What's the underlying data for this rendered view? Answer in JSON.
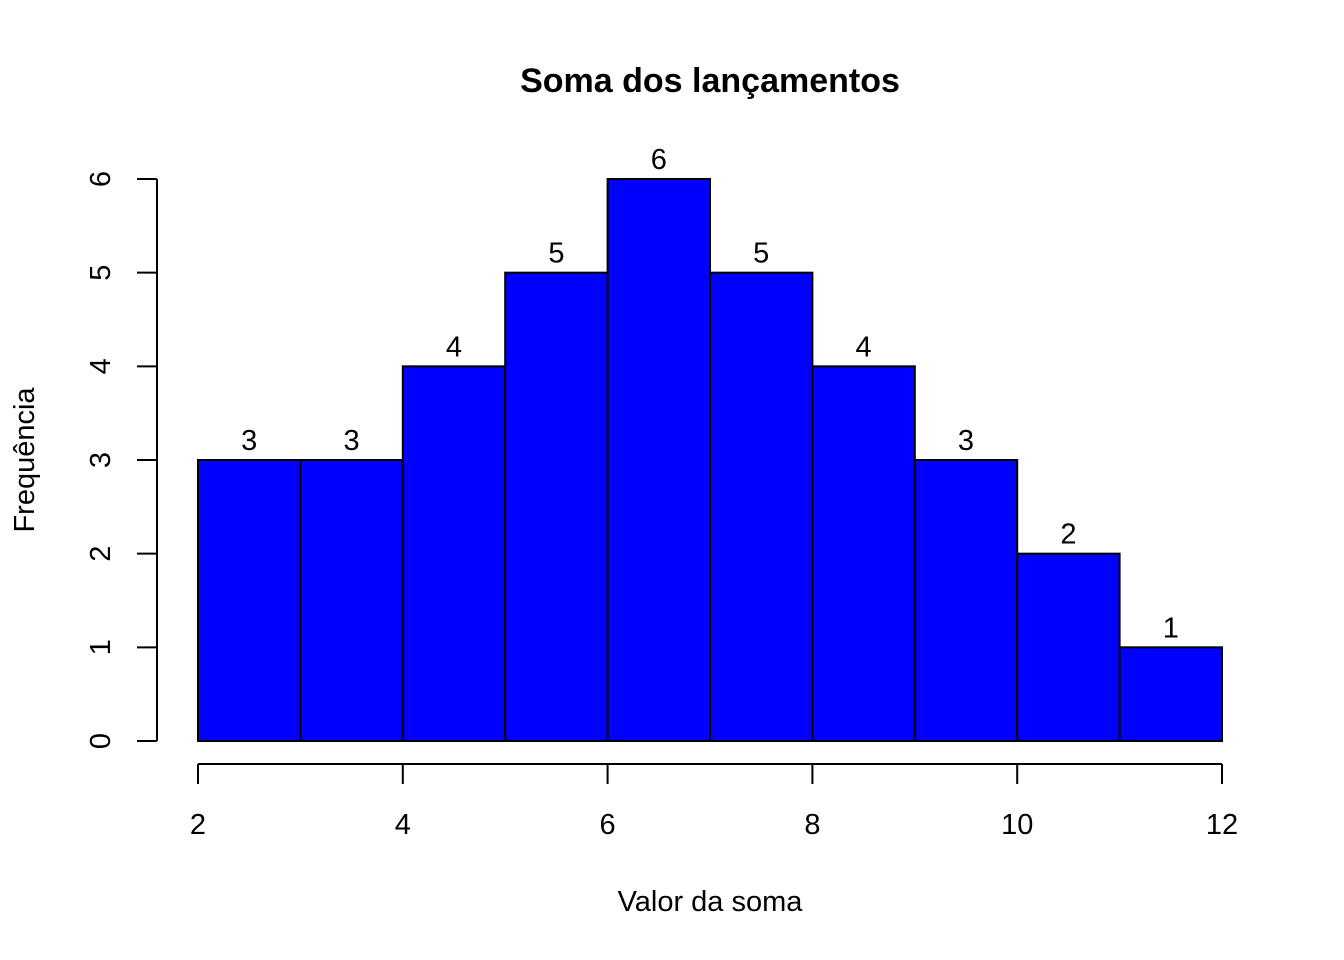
{
  "chart_data": {
    "type": "bar",
    "title": "Soma dos lançamentos",
    "xlabel": "Valor da soma",
    "ylabel": "Frequência",
    "bins": [
      [
        2,
        3
      ],
      [
        3,
        4
      ],
      [
        4,
        5
      ],
      [
        5,
        6
      ],
      [
        6,
        7
      ],
      [
        7,
        8
      ],
      [
        8,
        9
      ],
      [
        9,
        10
      ],
      [
        10,
        11
      ],
      [
        11,
        12
      ]
    ],
    "values": [
      3,
      3,
      4,
      5,
      6,
      5,
      4,
      3,
      2,
      1
    ],
    "data_labels": [
      "3",
      "3",
      "4",
      "5",
      "6",
      "5",
      "4",
      "3",
      "2",
      "1"
    ],
    "xticks": [
      2,
      4,
      6,
      8,
      10,
      12
    ],
    "yticks": [
      0,
      1,
      2,
      3,
      4,
      5,
      6
    ],
    "xlim": [
      2,
      12
    ],
    "ylim": [
      0,
      6
    ],
    "bar_color": "#0000ff",
    "bar_border_color": "#000000",
    "grid": false
  }
}
